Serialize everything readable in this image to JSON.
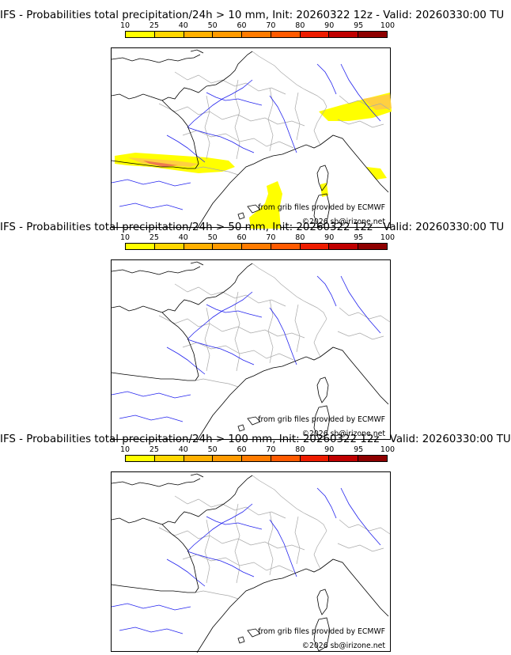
{
  "panels": [
    {
      "title": "IFS - Probabilities total precipitation/24h > 10 mm, Init: 20260322 12z - Valid: 20260330:00 TU",
      "has_precip": true
    },
    {
      "title": "IFS - Probabilities total precipitation/24h > 50 mm, Init: 20260322 12z - Valid: 20260330:00 TU",
      "has_precip": false
    },
    {
      "title": "IFS - Probabilities total precipitation/24h > 100 mm, Init: 20260322 12z - Valid: 20260330:00 TU",
      "has_precip": false
    }
  ],
  "legend": {
    "ticks": [
      "10",
      "25",
      "40",
      "50",
      "60",
      "70",
      "80",
      "90",
      "95",
      "100"
    ],
    "colors": [
      "#ffff00",
      "#ffd700",
      "#ffb000",
      "#ff9a00",
      "#ff7b00",
      "#ff5a00",
      "#ee1c00",
      "#c00000",
      "#8e0000",
      "#5a0000"
    ]
  },
  "credits": {
    "source": "from grib files provided by ECMWF",
    "copyright": "©2026 sb@irizone.net"
  },
  "colors": {
    "coast": "#000000",
    "borders": "#a8a8a8",
    "rivers": "#2222ee",
    "precip_low": "#ffff00",
    "precip_mid": "#ffd040",
    "precip_high": "#ee7a50"
  }
}
